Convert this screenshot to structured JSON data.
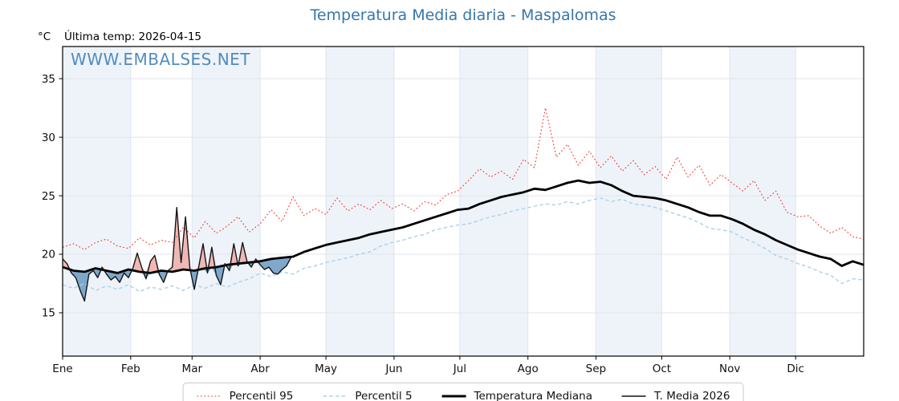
{
  "title": "Temperatura Media diaria - Maspalomas",
  "y_axis_unit": "°C",
  "last_temp_text": "Última temp: 2026-04-15",
  "watermark": "WWW.EMBALSES.NET",
  "colors": {
    "title_blue": "#3677ac",
    "watermark_blue": "#3d81b8",
    "percentil95_red": "#ef3b32",
    "percentil5_blue": "#a9d2e6",
    "median_black": "#000000",
    "t2026_dark": "#141414",
    "fill_above_median": "#f0b3b0",
    "fill_below_median": "#719fc7",
    "month_band": "#eef3f9",
    "gridline": "#dfe4ec",
    "axis_spine": "#000000"
  },
  "chart_data": {
    "type": "line",
    "title": "Temperatura Media diaria - Maspalomas",
    "xlabel": "",
    "ylabel": "°C",
    "x_axis": {
      "tick_labels": [
        "Ene",
        "Feb",
        "Mar",
        "Abr",
        "May",
        "Jun",
        "Jul",
        "Ago",
        "Sep",
        "Oct",
        "Nov",
        "Dic"
      ],
      "month_start_days": [
        0,
        31,
        59,
        90,
        120,
        151,
        181,
        212,
        243,
        273,
        304,
        334,
        365
      ],
      "range_days": [
        0,
        365
      ],
      "shaded_month_indices": [
        0,
        2,
        4,
        6,
        8,
        10
      ]
    },
    "y_axis": {
      "ticks": [
        15,
        20,
        25,
        30,
        35
      ],
      "ylim": [
        11.3,
        37.75
      ],
      "grid": true
    },
    "legend_position": "bottom-center",
    "series": [
      {
        "name": "Percentil 95",
        "style": "dotted",
        "color": "#ef3b32",
        "width": 1.1,
        "dash": "1.8 2.6",
        "start_day": 0,
        "step_days": 5,
        "values": [
          20.6,
          20.9,
          20.4,
          21.0,
          21.3,
          20.7,
          20.5,
          21.4,
          20.8,
          21.2,
          21.0,
          22.3,
          21.4,
          22.8,
          21.8,
          22.4,
          23.2,
          21.9,
          22.6,
          23.8,
          22.8,
          24.9,
          23.3,
          23.9,
          23.4,
          24.8,
          23.7,
          24.3,
          23.8,
          24.6,
          23.9,
          24.3,
          23.7,
          24.5,
          24.2,
          25.1,
          25.4,
          26.3,
          27.3,
          26.6,
          27.1,
          26.4,
          28.1,
          27.4,
          32.5,
          28.3,
          29.4,
          27.6,
          28.8,
          27.4,
          28.4,
          27.1,
          28.0,
          26.8,
          27.5,
          26.4,
          28.3,
          26.6,
          27.6,
          25.9,
          26.8,
          26.1,
          25.4,
          26.3,
          24.6,
          25.4,
          23.6,
          23.2,
          23.3,
          22.4,
          21.8,
          22.3,
          21.5,
          21.3
        ]
      },
      {
        "name": "Percentil 5",
        "style": "dashed",
        "color": "#a9d2e6",
        "width": 1.4,
        "dash": "4.5 3.2",
        "start_day": 0,
        "step_days": 5,
        "values": [
          17.4,
          17.1,
          17.5,
          16.9,
          17.3,
          17.0,
          17.4,
          16.8,
          17.2,
          17.0,
          17.3,
          16.9,
          17.4,
          17.1,
          17.5,
          17.2,
          17.6,
          17.9,
          18.4,
          18.1,
          18.5,
          18.3,
          18.8,
          19.0,
          19.3,
          19.5,
          19.7,
          20.0,
          20.2,
          20.7,
          21.0,
          21.2,
          21.5,
          21.7,
          22.1,
          22.3,
          22.5,
          22.6,
          22.9,
          23.2,
          23.4,
          23.7,
          23.9,
          24.1,
          24.3,
          24.2,
          24.5,
          24.3,
          24.6,
          24.8,
          24.5,
          24.7,
          24.3,
          24.2,
          24.0,
          23.7,
          23.4,
          23.1,
          22.7,
          22.2,
          22.1,
          21.9,
          21.4,
          21.0,
          20.5,
          19.9,
          19.6,
          19.2,
          18.9,
          18.5,
          18.2,
          17.5,
          17.9,
          17.8
        ]
      },
      {
        "name": "Temperatura Mediana",
        "style": "solid",
        "color": "#000000",
        "width": 2.8,
        "dash": "",
        "start_day": 0,
        "step_days": 5,
        "values": [
          18.9,
          18.6,
          18.5,
          18.8,
          18.6,
          18.4,
          18.7,
          18.5,
          18.4,
          18.6,
          18.5,
          18.7,
          18.6,
          18.8,
          18.9,
          19.1,
          19.2,
          19.3,
          19.4,
          19.6,
          19.7,
          19.8,
          20.2,
          20.5,
          20.8,
          21.0,
          21.2,
          21.4,
          21.7,
          21.9,
          22.1,
          22.3,
          22.6,
          22.9,
          23.2,
          23.5,
          23.8,
          23.9,
          24.3,
          24.6,
          24.9,
          25.1,
          25.3,
          25.6,
          25.5,
          25.8,
          26.1,
          26.3,
          26.1,
          26.2,
          25.9,
          25.4,
          25.0,
          24.9,
          24.8,
          24.6,
          24.3,
          24.0,
          23.6,
          23.3,
          23.3,
          23.0,
          22.6,
          22.1,
          21.7,
          21.2,
          20.8,
          20.4,
          20.1,
          19.8,
          19.6,
          19.0,
          19.4,
          19.1
        ]
      },
      {
        "name": "T. Media 2026",
        "style": "solid",
        "color": "#141414",
        "width": 1.4,
        "dash": "",
        "start_day": 0,
        "step_days": 2,
        "fill_vs_median": true,
        "values": [
          19.6,
          19.2,
          18.4,
          18.0,
          16.9,
          16.0,
          18.3,
          18.6,
          18.0,
          18.9,
          18.3,
          17.8,
          18.1,
          17.6,
          18.4,
          18.0,
          18.8,
          20.1,
          18.9,
          17.9,
          19.4,
          19.9,
          18.3,
          17.6,
          18.6,
          18.9,
          24.0,
          19.3,
          23.2,
          18.8,
          17.0,
          18.9,
          20.9,
          18.4,
          20.6,
          18.2,
          17.4,
          19.2,
          18.6,
          20.9,
          19.0,
          21.0,
          19.4,
          18.9,
          19.6,
          19.1,
          18.7,
          18.9,
          18.4,
          18.3,
          18.7,
          19.0,
          19.7
        ]
      }
    ]
  },
  "legend": {
    "items": [
      {
        "label": "Percentil 95"
      },
      {
        "label": "Percentil 5"
      },
      {
        "label": "Temperatura Mediana"
      },
      {
        "label": "T. Media 2026"
      }
    ]
  }
}
